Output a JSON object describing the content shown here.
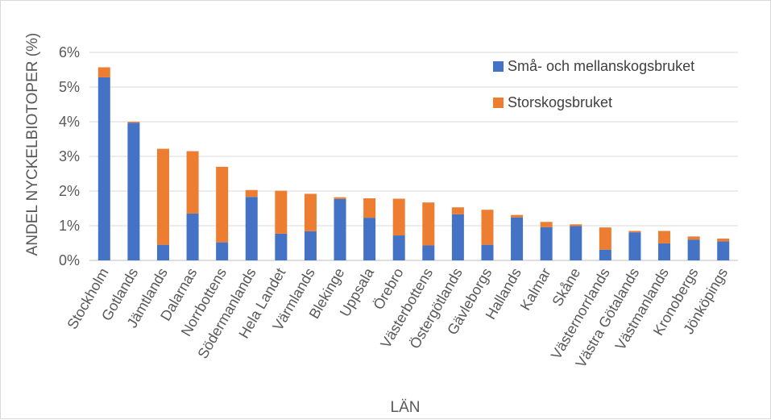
{
  "chart_data": {
    "type": "bar",
    "stacked": true,
    "xlabel": "LÄN",
    "ylabel": "ANDEL NYCKELBIOTOPER (%)",
    "ylim": [
      0,
      6
    ],
    "y_ticks": [
      "0%",
      "1%",
      "2%",
      "3%",
      "4%",
      "5%",
      "6%"
    ],
    "grid": true,
    "legend_position": "top-right",
    "categories": [
      "Stockholm",
      "Gotlands",
      "Jämtlands",
      "Dalarnas",
      "Norrbottens",
      "Södermanlands",
      "Hela Landet",
      "Värmlands",
      "Blekinge",
      "Uppsala",
      "Örebro",
      "Västerbottens",
      "Östergötlands",
      "Gävleborgs",
      "Hallands",
      "Kalmar",
      "Skåne",
      "Västernorrlands",
      "Västra Götalands",
      "Västmanlands",
      "Kronobergs",
      "Jönköpings"
    ],
    "series": [
      {
        "name": "Små- och mellanskogsbruket",
        "color": "#4472C4",
        "values": [
          5.28,
          3.97,
          0.45,
          1.35,
          0.52,
          1.83,
          0.77,
          0.84,
          1.77,
          1.23,
          0.72,
          0.43,
          1.33,
          0.45,
          1.24,
          0.96,
          0.99,
          0.31,
          0.81,
          0.49,
          0.6,
          0.55
        ]
      },
      {
        "name": "Storskogsbruket",
        "color": "#ED7D31",
        "values": [
          0.29,
          0.03,
          2.77,
          1.8,
          2.18,
          0.2,
          1.24,
          1.08,
          0.05,
          0.56,
          1.06,
          1.24,
          0.2,
          1.01,
          0.07,
          0.15,
          0.05,
          0.64,
          0.04,
          0.36,
          0.09,
          0.08
        ]
      }
    ]
  }
}
